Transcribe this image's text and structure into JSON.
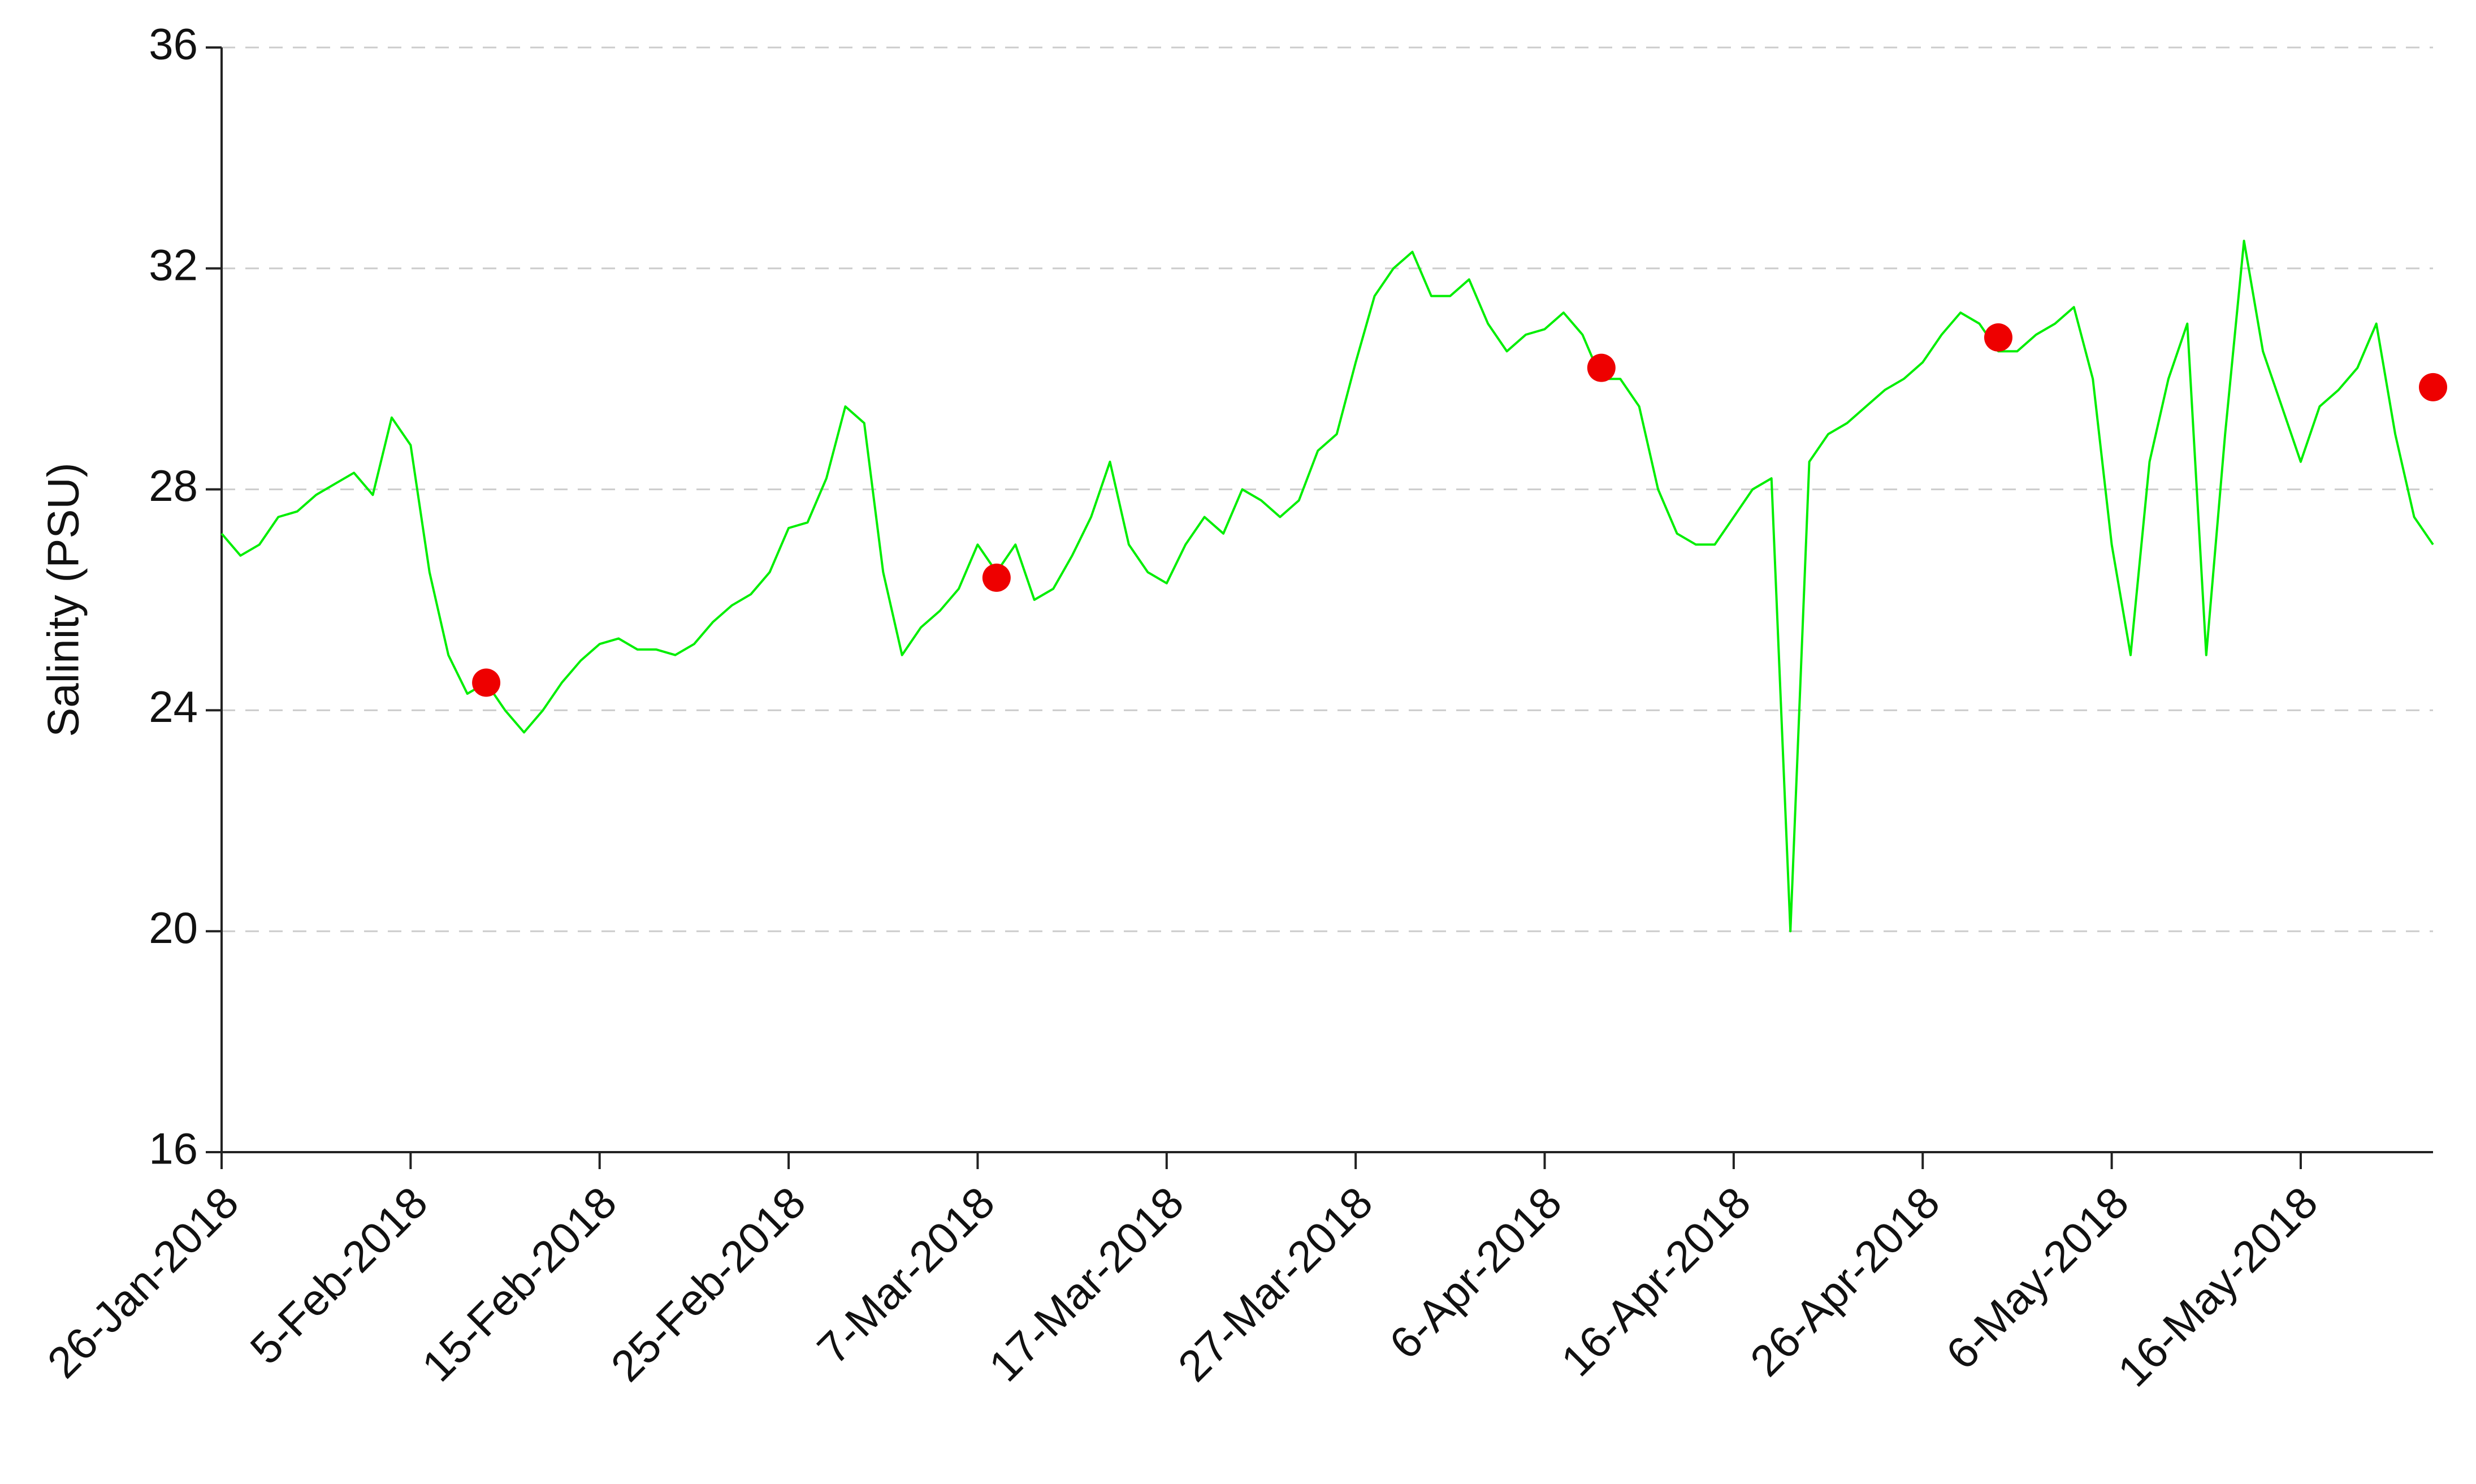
{
  "chart_data": {
    "type": "line",
    "y_label": "Salinity (PSU)",
    "ylim": [
      16,
      36
    ],
    "yticks": [
      16,
      20,
      24,
      28,
      32,
      36
    ],
    "xlim": [
      "2018-01-26",
      "2018-05-23"
    ],
    "xticks": [
      {
        "value": "2018-01-26",
        "label": "26-Jan-2018"
      },
      {
        "value": "2018-02-05",
        "label": "5-Feb-2018"
      },
      {
        "value": "2018-02-15",
        "label": "15-Feb-2018"
      },
      {
        "value": "2018-02-25",
        "label": "25-Feb-2018"
      },
      {
        "value": "2018-03-07",
        "label": "7-Mar-2018"
      },
      {
        "value": "2018-03-17",
        "label": "17-Mar-2018"
      },
      {
        "value": "2018-03-27",
        "label": "27-Mar-2018"
      },
      {
        "value": "2018-04-06",
        "label": "6-Apr-2018"
      },
      {
        "value": "2018-04-16",
        "label": "16-Apr-2018"
      },
      {
        "value": "2018-04-26",
        "label": "26-Apr-2018"
      },
      {
        "value": "2018-05-06",
        "label": "6-May-2018"
      },
      {
        "value": "2018-05-16",
        "label": "16-May-2018"
      }
    ],
    "grid": true,
    "series": [
      {
        "type": "line",
        "color": "#00ee00",
        "x": [
          "2018-01-26",
          "2018-01-27",
          "2018-01-28",
          "2018-01-29",
          "2018-01-30",
          "2018-01-31",
          "2018-02-01",
          "2018-02-02",
          "2018-02-03",
          "2018-02-04",
          "2018-02-05",
          "2018-02-06",
          "2018-02-07",
          "2018-02-08",
          "2018-02-09",
          "2018-02-10",
          "2018-02-11",
          "2018-02-12",
          "2018-02-13",
          "2018-02-14",
          "2018-02-15",
          "2018-02-16",
          "2018-02-17",
          "2018-02-18",
          "2018-02-19",
          "2018-02-20",
          "2018-02-21",
          "2018-02-22",
          "2018-02-23",
          "2018-02-24",
          "2018-02-25",
          "2018-02-26",
          "2018-02-27",
          "2018-02-28",
          "2018-03-01",
          "2018-03-02",
          "2018-03-03",
          "2018-03-04",
          "2018-03-05",
          "2018-03-06",
          "2018-03-07",
          "2018-03-08",
          "2018-03-09",
          "2018-03-10",
          "2018-03-11",
          "2018-03-12",
          "2018-03-13",
          "2018-03-14",
          "2018-03-15",
          "2018-03-16",
          "2018-03-17",
          "2018-03-18",
          "2018-03-19",
          "2018-03-20",
          "2018-03-21",
          "2018-03-22",
          "2018-03-23",
          "2018-03-24",
          "2018-03-25",
          "2018-03-26",
          "2018-03-27",
          "2018-03-28",
          "2018-03-29",
          "2018-03-30",
          "2018-03-31",
          "2018-04-01",
          "2018-04-02",
          "2018-04-03",
          "2018-04-04",
          "2018-04-05",
          "2018-04-06",
          "2018-04-07",
          "2018-04-08",
          "2018-04-09",
          "2018-04-10",
          "2018-04-11",
          "2018-04-12",
          "2018-04-13",
          "2018-04-14",
          "2018-04-15",
          "2018-04-16",
          "2018-04-17",
          "2018-04-18",
          "2018-04-19",
          "2018-04-20",
          "2018-04-21",
          "2018-04-22",
          "2018-04-23",
          "2018-04-24",
          "2018-04-25",
          "2018-04-26",
          "2018-04-27",
          "2018-04-28",
          "2018-04-29",
          "2018-04-30",
          "2018-05-01",
          "2018-05-02",
          "2018-05-03",
          "2018-05-04",
          "2018-05-05",
          "2018-05-06",
          "2018-05-07",
          "2018-05-08",
          "2018-05-09",
          "2018-05-10",
          "2018-05-11",
          "2018-05-12",
          "2018-05-13",
          "2018-05-14",
          "2018-05-15",
          "2018-05-16",
          "2018-05-17",
          "2018-05-18",
          "2018-05-19",
          "2018-05-20",
          "2018-05-21",
          "2018-05-22",
          "2018-05-23"
        ],
        "values": [
          27.2,
          26.8,
          27.0,
          27.5,
          27.6,
          27.9,
          28.1,
          28.3,
          27.9,
          29.3,
          28.8,
          26.5,
          25.0,
          24.3,
          24.5,
          24.0,
          23.6,
          24.0,
          24.5,
          24.9,
          25.2,
          25.3,
          25.1,
          25.1,
          25.0,
          25.2,
          25.6,
          25.9,
          26.1,
          26.5,
          27.3,
          27.4,
          28.2,
          29.5,
          29.2,
          26.5,
          25.0,
          25.5,
          25.8,
          26.2,
          27.0,
          26.5,
          27.0,
          26.0,
          26.2,
          26.8,
          27.5,
          28.5,
          27.0,
          26.5,
          26.3,
          27.0,
          27.5,
          27.2,
          28.0,
          27.8,
          27.5,
          27.8,
          28.7,
          29.0,
          30.3,
          31.5,
          32.0,
          32.3,
          31.5,
          31.5,
          31.8,
          31.0,
          30.5,
          30.8,
          30.9,
          31.2,
          30.8,
          30.0,
          30.0,
          29.5,
          28.0,
          27.2,
          27.0,
          27.0,
          27.5,
          28.0,
          28.2,
          20.0,
          28.5,
          29.0,
          29.2,
          29.5,
          29.8,
          30.0,
          30.3,
          30.8,
          31.2,
          31.0,
          30.5,
          30.5,
          30.8,
          31.0,
          31.3,
          30.0,
          27.0,
          25.0,
          28.5,
          30.0,
          31.0,
          25.0,
          29.0,
          32.5,
          30.5,
          29.5,
          28.5,
          29.5,
          29.8,
          30.2,
          31.0,
          29.0,
          27.5,
          27.0
        ]
      },
      {
        "type": "scatter",
        "color": "#ee0000",
        "x": [
          "2018-02-09",
          "2018-03-08",
          "2018-04-09",
          "2018-04-30",
          "2018-05-23"
        ],
        "values": [
          24.5,
          26.4,
          30.2,
          30.75,
          29.85
        ]
      }
    ]
  }
}
